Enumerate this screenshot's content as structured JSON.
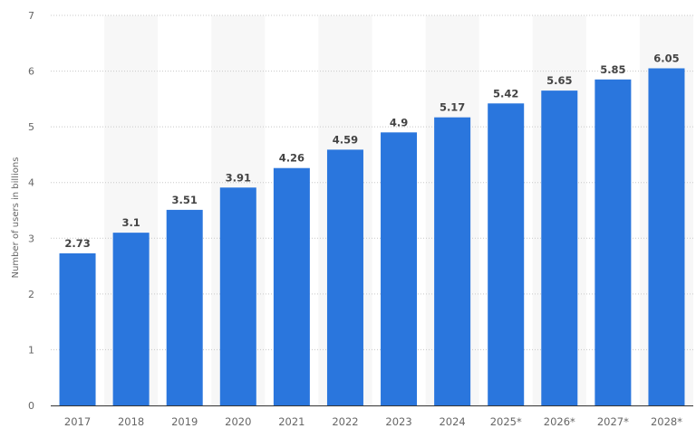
{
  "chart_data": {
    "type": "bar",
    "categories": [
      "2017",
      "2018",
      "2019",
      "2020",
      "2021",
      "2022",
      "2023",
      "2024",
      "2025*",
      "2026*",
      "2027*",
      "2028*"
    ],
    "values": [
      2.73,
      3.1,
      3.51,
      3.91,
      4.26,
      4.59,
      4.9,
      5.17,
      5.42,
      5.65,
      5.85,
      6.05
    ],
    "data_labels": [
      "2.73",
      "3.1",
      "3.51",
      "3.91",
      "4.26",
      "4.59",
      "4.9",
      "5.17",
      "5.42",
      "5.65",
      "5.85",
      "6.05"
    ],
    "ylabel": "Number of users in billions",
    "xlabel": "",
    "ylim": [
      0,
      7
    ],
    "yticks": [
      0,
      1,
      2,
      3,
      4,
      5,
      6,
      7
    ],
    "grid": true,
    "bar_color": "#2a76dd",
    "band_color": "#f7f7f7"
  }
}
